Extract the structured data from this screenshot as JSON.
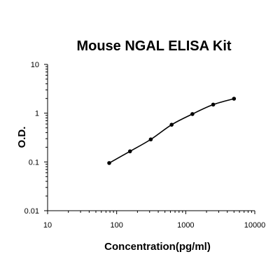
{
  "chart_data": {
    "type": "scatter",
    "title": "Mouse NGAL ELISA Kit",
    "xlabel": "Concentration(pg/ml)",
    "ylabel": "O.D.",
    "xscale": "log",
    "yscale": "log",
    "xlim": [
      10,
      10000
    ],
    "ylim": [
      0.01,
      10
    ],
    "xticks": [
      "10",
      "100",
      "1000",
      "10000"
    ],
    "yticks": [
      "0.01",
      "0.1",
      "1",
      "10"
    ],
    "grid": false,
    "legend": "none",
    "series": [
      {
        "points": [
          {
            "x": 78,
            "y": 0.095
          },
          {
            "x": 156,
            "y": 0.165
          },
          {
            "x": 312,
            "y": 0.29
          },
          {
            "x": 625,
            "y": 0.58
          },
          {
            "x": 1250,
            "y": 0.96
          },
          {
            "x": 2500,
            "y": 1.5
          },
          {
            "x": 5000,
            "y": 1.98
          }
        ],
        "fit_line": true
      }
    ],
    "colors": {
      "marker": "#000000",
      "line": "#000000",
      "axis": "#000000"
    }
  }
}
